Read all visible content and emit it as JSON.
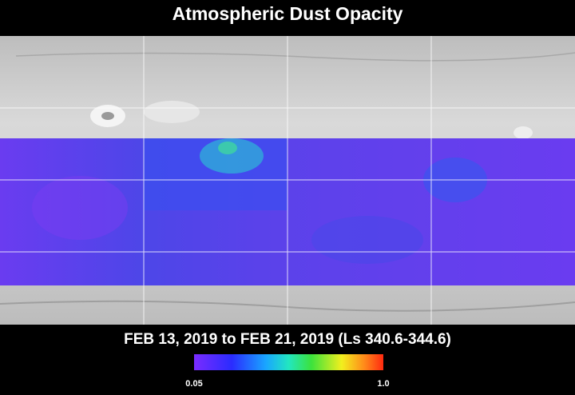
{
  "title": "Atmospheric Dust Opacity",
  "caption": "FEB 13, 2019 to FEB 21, 2019 (Ls 340.6-344.6)",
  "colorbar": {
    "min_label": "0.05",
    "max_label": "1.0"
  }
}
